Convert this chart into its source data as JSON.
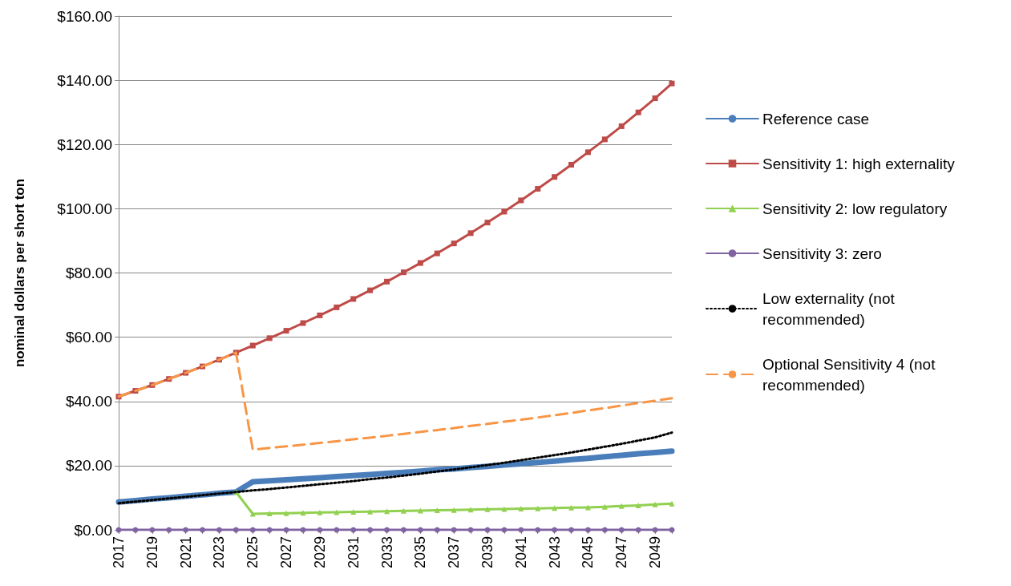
{
  "chart_data": {
    "type": "line",
    "ylabel": "nominal dollars per short ton",
    "categories": [
      "2017",
      null,
      "2019",
      null,
      "2021",
      null,
      "2023",
      null,
      "2025",
      null,
      "2027",
      null,
      "2029",
      null,
      "2031",
      null,
      "2033",
      null,
      "2035",
      null,
      "2037",
      null,
      "2039",
      null,
      "2041",
      null,
      "2043",
      null,
      "2045",
      null,
      "2047",
      null,
      "2049",
      null
    ],
    "ylim": [
      0,
      160
    ],
    "yticks": [
      {
        "value": 0,
        "label": "$0.00"
      },
      {
        "value": 20,
        "label": "$20.00"
      },
      {
        "value": 40,
        "label": "$40.00"
      },
      {
        "value": 60,
        "label": "$60.00"
      },
      {
        "value": 80,
        "label": "$80.00"
      },
      {
        "value": 100,
        "label": "$100.00"
      },
      {
        "value": 120,
        "label": "$120.00"
      },
      {
        "value": 140,
        "label": "$140.00"
      },
      {
        "value": 160,
        "label": "$160.00"
      }
    ],
    "grid": "y",
    "legend": "right",
    "series": [
      {
        "name": "Reference case",
        "color": "#4a7ebb",
        "marker": "none",
        "line_style": "solid",
        "values": [
          8.7,
          9.1,
          9.6,
          10.0,
          10.5,
          10.9,
          11.4,
          11.8,
          15.0,
          15.3,
          15.6,
          15.9,
          16.2,
          16.6,
          16.9,
          17.2,
          17.6,
          17.9,
          18.3,
          18.7,
          19.0,
          19.4,
          19.8,
          20.2,
          20.6,
          21.0,
          21.4,
          21.9,
          22.3,
          22.8,
          23.2,
          23.7,
          24.1,
          24.5
        ]
      },
      {
        "name": "Sensitivity 1: high externality",
        "color": "#be4b48",
        "marker": "square",
        "line_style": "solid",
        "values": [
          41.5,
          43.3,
          45.1,
          47.0,
          48.9,
          50.9,
          53.0,
          55.2,
          57.4,
          59.7,
          62.0,
          64.4,
          66.8,
          69.3,
          71.9,
          74.6,
          77.3,
          80.2,
          83.1,
          86.1,
          89.2,
          92.4,
          95.7,
          99.1,
          102.6,
          106.2,
          109.9,
          113.7,
          117.6,
          121.6,
          125.7,
          130.0,
          134.4,
          139.0
        ]
      },
      {
        "name": "Sensitivity 2: low regulatory",
        "color": "#92d050",
        "marker": "triangle",
        "line_style": "solid",
        "values": [
          null,
          null,
          null,
          null,
          null,
          null,
          null,
          11.8,
          5.0,
          5.1,
          5.2,
          5.3,
          5.4,
          5.5,
          5.6,
          5.7,
          5.8,
          5.9,
          6.0,
          6.1,
          6.2,
          6.3,
          6.4,
          6.5,
          6.6,
          6.7,
          6.8,
          6.9,
          7.0,
          7.2,
          7.4,
          7.6,
          7.9,
          8.2
        ]
      },
      {
        "name": "Sensitivity 3: zero",
        "color": "#8064a2",
        "marker": "circle",
        "line_style": "solid",
        "values": [
          0,
          0,
          0,
          0,
          0,
          0,
          0,
          0,
          0,
          0,
          0,
          0,
          0,
          0,
          0,
          0,
          0,
          0,
          0,
          0,
          0,
          0,
          0,
          0,
          0,
          0,
          0,
          0,
          0,
          0,
          0,
          0,
          0,
          0
        ]
      },
      {
        "name": "Low externality (not recommended)",
        "color": "#000000",
        "marker": "none",
        "line_style": "dotted",
        "values": [
          8.3,
          8.8,
          9.3,
          9.8,
          10.3,
          10.8,
          11.3,
          11.8,
          12.3,
          12.7,
          13.2,
          13.7,
          14.2,
          14.7,
          15.2,
          15.8,
          16.3,
          16.9,
          17.5,
          18.2,
          18.8,
          19.5,
          20.2,
          20.9,
          21.7,
          22.5,
          23.3,
          24.1,
          25.0,
          25.9,
          26.8,
          27.8,
          28.8,
          30.3
        ]
      },
      {
        "name": "Optional Sensitivity 4 (not recommended)",
        "color": "#f79646",
        "marker": "none",
        "line_style": "dashed",
        "values": [
          41.5,
          43.3,
          45.1,
          47.0,
          48.9,
          50.9,
          53.0,
          55.2,
          25.0,
          25.5,
          26.0,
          26.5,
          27.1,
          27.6,
          28.2,
          28.7,
          29.3,
          29.9,
          30.5,
          31.1,
          31.7,
          32.4,
          33.0,
          33.7,
          34.3,
          35.0,
          35.7,
          36.4,
          37.2,
          37.9,
          38.7,
          39.5,
          40.2,
          41.0
        ]
      }
    ]
  }
}
